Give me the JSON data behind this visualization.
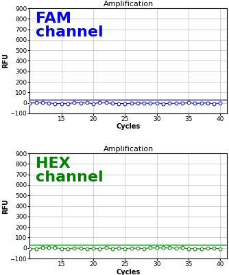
{
  "title": "Amplification",
  "xlabel": "Cycles",
  "ylabel": "RFU",
  "ylim": [
    -100,
    900
  ],
  "yticks": [
    -100,
    0,
    100,
    200,
    300,
    400,
    500,
    600,
    700,
    800,
    900
  ],
  "xlim": [
    10,
    41
  ],
  "xticks": [
    15,
    20,
    25,
    30,
    35,
    40
  ],
  "cycles_start": 10,
  "cycles_end": 40,
  "fam_label": "FAM\nchannel",
  "hex_label": "HEX\nchannel",
  "fam_color": "#0000FF",
  "hex_color": "#008000",
  "threshold_y": 30,
  "background_color": "#ffffff",
  "grid_color": "#aaaaaa",
  "label_fontsize": 16,
  "axis_title_fontsize": 8,
  "axis_label_fontsize": 7,
  "tick_fontsize": 6.5
}
